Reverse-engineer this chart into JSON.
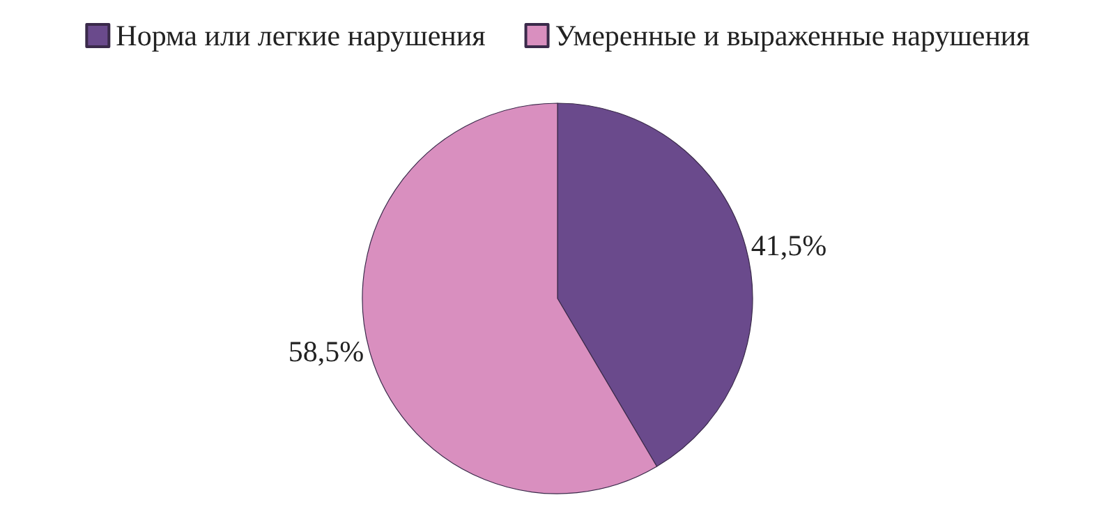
{
  "chart_data": {
    "type": "pie",
    "categories": [
      "Норма или легкие нарушения",
      "Умеренные и выраженные нарушения"
    ],
    "values": [
      41.5,
      58.5
    ],
    "colors": [
      "#6a4a8c",
      "#d98fbf"
    ],
    "value_labels": [
      "41,5%",
      "58,5%"
    ],
    "legend": "top"
  }
}
